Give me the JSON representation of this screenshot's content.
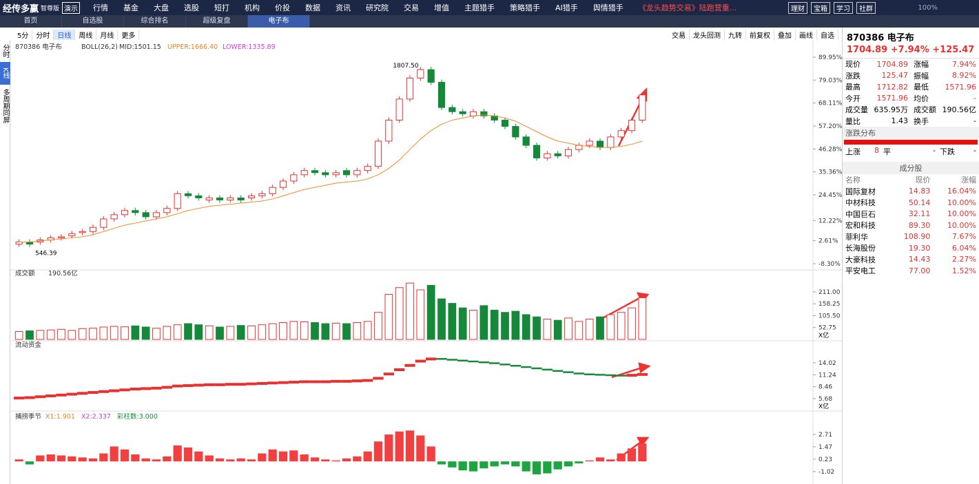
{
  "menu": {
    "logo": "经传多赢",
    "edition": "智尊版",
    "demo": "演示",
    "items": [
      "行情",
      "基金",
      "大盘",
      "选股",
      "短打",
      "机构",
      "价投",
      "数据",
      "资讯",
      "研究院",
      "交易",
      "增值",
      "主题猎手",
      "策略猎手",
      "AI猎手",
      "舆情猎手",
      "《龙头趋势交易》陆跑营重..."
    ],
    "right": [
      "理财",
      "宝箱",
      "学习",
      "社群"
    ],
    "zoom": "100%"
  },
  "tabs": [
    "首页",
    "自选股",
    "综合排名",
    "超级复盘",
    "电子布"
  ],
  "toolbar": {
    "periods": [
      "5分",
      "分时",
      "日线",
      "周线",
      "月线",
      "更多"
    ],
    "tools": [
      "交易",
      "龙头回测",
      "九转",
      "前复权",
      "叠加",
      "画线",
      "自选"
    ]
  },
  "sidebar": [
    "分时",
    "K线",
    "多周期同屏"
  ],
  "kline": {
    "type": "candlestick",
    "stock": "870386 电子布",
    "indicator": "BOLL(26,2)",
    "mid_label": "MID:1501.15",
    "upper_label": "UPPER:1666.40",
    "lower_label": "LOWER:1335.89",
    "high_label": "1807.50",
    "low_label": "546.39",
    "ylim": [
      -11.25,
      96.83
    ],
    "yticks": [
      {
        "value": 89.95,
        "label": "89.95%"
      },
      {
        "value": 79.03,
        "label": "79.03%"
      },
      {
        "value": 68.11,
        "label": "68.11%"
      },
      {
        "value": 57.2,
        "label": "57.20%"
      },
      {
        "value": 46.28,
        "label": "46.28%"
      },
      {
        "value": 35.36,
        "label": "35.36%"
      },
      {
        "value": 24.45,
        "label": "24.45%"
      },
      {
        "value": 12.22,
        "label": "12.22%"
      },
      {
        "value": 2.61,
        "label": "2.61%"
      },
      {
        "value": -8.3,
        "label": "-8.30%"
      }
    ],
    "up_color": "#e8312f",
    "down_color": "#15883a",
    "open": [
      1,
      2,
      2,
      3,
      4,
      5,
      6.5,
      7,
      9,
      13,
      15,
      17,
      16,
      14,
      16,
      18,
      25,
      24,
      22,
      23,
      22,
      23,
      23,
      24,
      25,
      28,
      31,
      34,
      36,
      35,
      34,
      36,
      34,
      36,
      38,
      50,
      60,
      70,
      80,
      84,
      78,
      66,
      64,
      62,
      64,
      62,
      60,
      57,
      52,
      48,
      42,
      44,
      43,
      46,
      48,
      50,
      47,
      52,
      55,
      60
    ],
    "close": [
      2,
      1,
      3,
      4,
      4.5,
      6,
      7,
      9,
      13,
      15,
      17,
      16,
      14,
      16,
      18,
      25,
      24,
      23,
      23,
      22,
      23,
      22,
      24,
      25,
      28,
      31,
      34,
      36,
      35,
      34,
      35,
      34,
      36,
      38,
      50,
      60,
      70,
      80,
      84,
      78,
      66,
      64,
      63,
      64,
      62,
      60,
      57,
      52,
      48,
      42,
      44,
      43,
      46,
      48,
      50,
      47,
      52,
      55,
      60,
      72
    ],
    "mid": {
      "color": "#f08c28",
      "values": [
        2,
        2,
        2.5,
        3,
        3.5,
        4,
        4.5,
        5.5,
        7,
        8.5,
        10,
        11,
        12,
        13,
        14,
        15.5,
        17,
        18,
        19,
        19.5,
        20,
        20.5,
        21,
        21.5,
        22.5,
        24,
        25.5,
        27,
        28,
        29,
        30,
        30.5,
        31,
        32,
        34,
        37,
        41,
        46,
        51,
        55,
        58,
        60,
        61,
        62,
        62.5,
        62,
        61,
        59.5,
        57,
        54.5,
        52,
        50,
        49,
        48,
        47.5,
        47,
        47,
        47.5,
        48.5,
        50
      ]
    }
  },
  "volume": {
    "title": "成交额",
    "total": "190.56亿",
    "unit": "X亿",
    "ylim": [
      0,
      253.6
    ],
    "yticks": [
      52.75,
      {
        "value": 105.5,
        "label": "105.50"
      },
      158.25,
      {
        "value": 211,
        "label": "211.00"
      }
    ],
    "values": [
      35,
      38,
      40,
      42,
      45,
      40,
      48,
      50,
      55,
      58,
      56,
      60,
      55,
      50,
      58,
      65,
      70,
      65,
      60,
      55,
      58,
      62,
      60,
      65,
      70,
      75,
      80,
      78,
      75,
      70,
      72,
      70,
      75,
      80,
      120,
      200,
      230,
      250,
      220,
      240,
      180,
      160,
      140,
      130,
      150,
      130,
      120,
      125,
      110,
      100,
      90,
      85,
      95,
      80,
      90,
      100,
      110,
      120,
      140,
      185
    ]
  },
  "fund": {
    "title": "流动资金",
    "unit": "X亿",
    "ylim": [
      3.6,
      16.75
    ],
    "yticks": [
      5.68,
      8.46,
      11.24,
      14.02
    ],
    "values": [
      5.9,
      6.0,
      6.2,
      6.4,
      6.6,
      6.8,
      7.0,
      7.2,
      7.4,
      7.6,
      7.8,
      8.0,
      8.1,
      8.2,
      8.4,
      8.7,
      8.8,
      8.9,
      9.0,
      9.0,
      9.1,
      9.1,
      9.2,
      9.3,
      9.4,
      9.5,
      9.6,
      9.7,
      9.7,
      9.7,
      9.8,
      9.8,
      9.9,
      10.0,
      10.5,
      11.5,
      12.5,
      13.5,
      14.5,
      15.0,
      14.9,
      14.7,
      14.5,
      14.3,
      14.1,
      13.9,
      13.6,
      13.3,
      13.0,
      12.7,
      12.4,
      12.1,
      11.8,
      11.5,
      11.3,
      11.2,
      11.1,
      11.0,
      11.2,
      11.4
    ]
  },
  "season": {
    "title": "捕捞季节",
    "x1": "X1:1.901",
    "x2": "X2:2.337",
    "bars": "彩柱数:3.000",
    "ylim": [
      -2.06,
      4.02
    ],
    "yticks": [
      -1.02,
      0.23,
      1.47,
      2.71
    ],
    "values": [
      0.2,
      -0.3,
      0.6,
      0.7,
      0.6,
      0.5,
      0.4,
      0.3,
      0.8,
      1.5,
      1.2,
      0.7,
      0.3,
      0.2,
      0.5,
      1.6,
      1.4,
      1.0,
      0.6,
      0.3,
      0.2,
      0.3,
      0.2,
      0.8,
      1.2,
      1.0,
      1.1,
      0.7,
      0.4,
      0.2,
      0.1,
      0.3,
      0.5,
      1.0,
      2.0,
      2.7,
      3.0,
      3.1,
      2.6,
      1.5,
      -0.3,
      -0.6,
      -0.9,
      -1.0,
      -0.7,
      -0.5,
      -0.3,
      -0.5,
      -1.0,
      -1.3,
      -1.2,
      -0.8,
      -0.5,
      -0.2,
      0.1,
      0.4,
      0.2,
      0.8,
      1.3,
      1.8
    ]
  },
  "quote": {
    "code_name": "870386 电子布",
    "price": "1704.89",
    "change_pct": "+7.94%",
    "change": "+125.47",
    "rows": [
      [
        "现价",
        "1704.89",
        "涨幅",
        "7.94%"
      ],
      [
        "涨跌",
        "125.47",
        "振幅",
        "8.92%"
      ],
      [
        "最高",
        "1712.82",
        "最低",
        "1571.96"
      ],
      [
        "今开",
        "1571.96",
        "均价",
        "-"
      ],
      [
        "成交量",
        "635.95万",
        "成交额",
        "190.56亿"
      ],
      [
        "量比",
        "1.43",
        "换手",
        "-"
      ]
    ]
  },
  "distribution": {
    "title": "涨跌分布",
    "up_label": "上涨",
    "up": "8",
    "flat_label": "平",
    "flat": "-",
    "down_label": "下跌",
    "down": "-"
  },
  "components": {
    "title": "成分股",
    "headers": [
      "名称",
      "现价",
      "涨幅"
    ],
    "rows": [
      [
        "国际复材",
        "14.83",
        "16.04%"
      ],
      [
        "中材科技",
        "50.14",
        "10.00%"
      ],
      [
        "中国巨石",
        "32.11",
        "10.00%"
      ],
      [
        "宏和科技",
        "89.30",
        "10.00%"
      ],
      [
        "菲利华",
        "108.90",
        "7.67%"
      ],
      [
        "长海股份",
        "19.30",
        "6.04%"
      ],
      [
        "大豪科技",
        "14.43",
        "2.27%"
      ],
      [
        "平安电工",
        "77.00",
        "1.52%"
      ]
    ]
  }
}
